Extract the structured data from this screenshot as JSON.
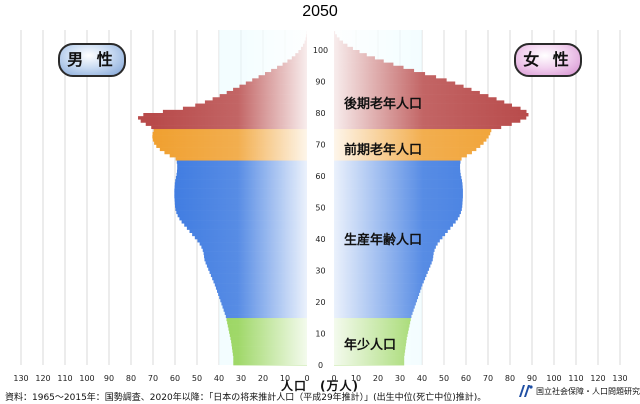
{
  "title": "2050",
  "male_label": "男 性",
  "female_label": "女 性",
  "age_groups": {
    "elderly_late": "後期老年人口",
    "elderly_early": "前期老年人口",
    "working": "生産年齢人口",
    "youth": "年少人口"
  },
  "xlabel": "人口　(万人)",
  "source": "資料：1965～2015年：国勢調査、2020年以降：「日本の将来推計人口（平成29年推計）」(出生中位(死亡中位)推計)。",
  "organization": "国立社会保障・人口問題研究所",
  "colors": {
    "youth": "#8fd14f",
    "working": "#3a78e0",
    "elderly_early": "#f0a030",
    "elderly_late": "#b84a4a",
    "center_fill": "#e8fcff"
  },
  "chart_data": {
    "type": "bar",
    "orientation": "horizontal-pyramid",
    "xlabel": "人口　(万人)",
    "ylabel": "",
    "xlim": [
      0,
      130
    ],
    "ylim": [
      0,
      105
    ],
    "x_ticks": [
      130,
      120,
      110,
      100,
      90,
      80,
      70,
      60,
      50,
      40,
      30,
      20,
      10,
      0
    ],
    "y_ticks": [
      0,
      10,
      20,
      30,
      40,
      50,
      60,
      70,
      80,
      90,
      100
    ],
    "grid": true,
    "age_bands": [
      {
        "name": "年少人口",
        "from": 0,
        "to": 14
      },
      {
        "name": "生産年齢人口",
        "from": 15,
        "to": 64
      },
      {
        "name": "前期老年人口",
        "from": 65,
        "to": 74
      },
      {
        "name": "後期老年人口",
        "from": 75,
        "to": 105
      }
    ],
    "series": [
      {
        "name": "男 性",
        "values": [
          33.5,
          33.5,
          33.5,
          33.7,
          33.9,
          34.1,
          34.3,
          34.5,
          34.8,
          35.1,
          35.4,
          35.7,
          36.0,
          36.3,
          36.6,
          36.9,
          37.4,
          37.9,
          38.4,
          38.9,
          39.4,
          39.9,
          40.4,
          40.9,
          41.4,
          41.9,
          42.5,
          43.1,
          43.7,
          44.3,
          44.9,
          45.5,
          46.1,
          46.6,
          46.8,
          47.0,
          47.4,
          48.0,
          48.8,
          49.8,
          51.0,
          52.2,
          53.4,
          54.6,
          55.8,
          57.0,
          58.0,
          58.8,
          59.4,
          59.8,
          60.0,
          60.1,
          60.2,
          60.3,
          60.3,
          60.3,
          60.2,
          60.1,
          59.9,
          59.6,
          59.3,
          59.1,
          59.0,
          59.0,
          59.2,
          59.7,
          62.4,
          64.8,
          66.9,
          68.5,
          69.5,
          70.1,
          70.3,
          70.2,
          69.7,
          70.8,
          73.3,
          75.6,
          76.8,
          74.4,
          65.5,
          56.4,
          50.8,
          46.4,
          42.9,
          39.7,
          36.5,
          33.6,
          30.7,
          27.8,
          24.9,
          22.0,
          19.1,
          16.3,
          13.6,
          11.1,
          8.9,
          6.9,
          5.3,
          3.9,
          2.7,
          1.8,
          1.1,
          0.6,
          0.3,
          0.1
        ]
      },
      {
        "name": "女 性",
        "values": [
          31.9,
          31.9,
          31.9,
          32.1,
          32.3,
          32.5,
          32.7,
          32.9,
          33.1,
          33.4,
          33.7,
          34.0,
          34.3,
          34.6,
          34.9,
          35.2,
          35.7,
          36.2,
          36.7,
          37.2,
          37.7,
          38.2,
          38.7,
          39.2,
          39.7,
          40.2,
          40.8,
          41.4,
          42.0,
          42.6,
          43.2,
          43.8,
          44.4,
          44.9,
          45.1,
          45.3,
          45.7,
          46.3,
          47.1,
          48.1,
          49.3,
          50.5,
          51.7,
          52.9,
          54.1,
          55.3,
          56.3,
          57.1,
          57.7,
          58.1,
          58.3,
          58.4,
          58.5,
          58.6,
          58.6,
          58.6,
          58.5,
          58.4,
          58.2,
          57.9,
          57.6,
          57.4,
          57.3,
          57.3,
          57.5,
          58.0,
          60.4,
          62.7,
          64.7,
          66.5,
          68.0,
          69.3,
          70.3,
          71.0,
          71.5,
          76.0,
          80.8,
          84.7,
          87.4,
          88.4,
          87.5,
          84.8,
          80.9,
          77.4,
          73.9,
          70.2,
          66.3,
          62.5,
          58.9,
          55.1,
          51.2,
          46.4,
          41.4,
          36.4,
          31.6,
          27.0,
          22.6,
          18.6,
          14.9,
          11.6,
          8.6,
          6.1,
          4.1,
          2.5,
          1.3,
          0.5
        ]
      }
    ]
  }
}
